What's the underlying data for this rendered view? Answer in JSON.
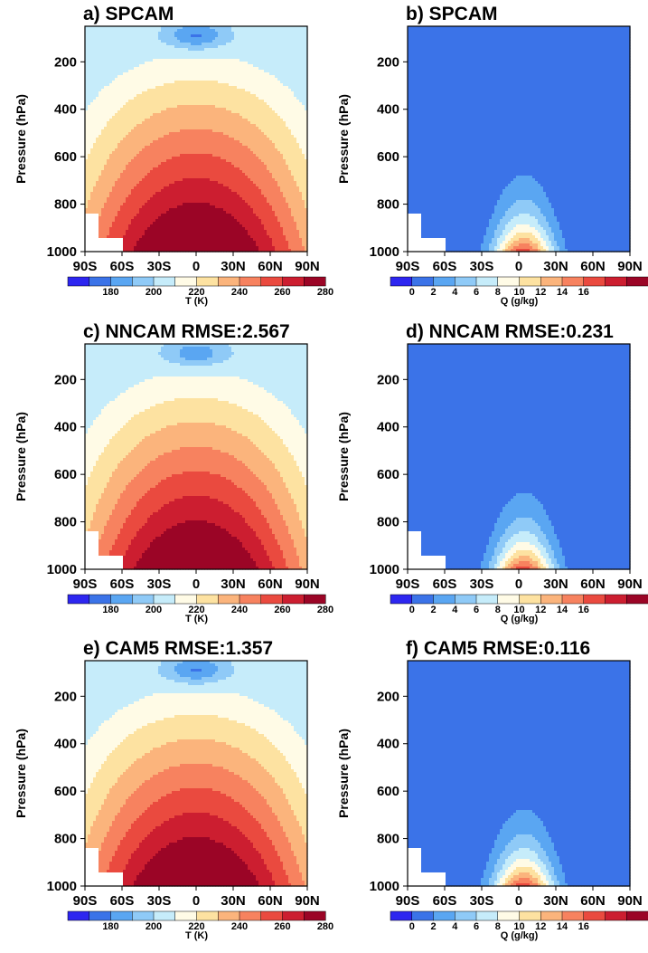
{
  "chart_data": [
    {
      "type": "contour",
      "title": "a) SPCAM",
      "variable": "T",
      "ylabel": "Pressure (hPa)",
      "x_ticks": [
        "90S",
        "60S",
        "30S",
        "0",
        "30N",
        "60N",
        "90N"
      ],
      "y_ticks": [
        "200",
        "400",
        "600",
        "800",
        "1000"
      ],
      "ylim": [
        1000,
        50
      ],
      "colorbar_label": "T (K)",
      "colorbar_ticks": [
        "180",
        "200",
        "220",
        "240",
        "260",
        "280"
      ],
      "colorbar_colors": [
        "#2d26f0",
        "#3b73e8",
        "#5aa6f2",
        "#8fcaf7",
        "#c6ecfa",
        "#fffbe6",
        "#fde2a1",
        "#fbb47c",
        "#f7825f",
        "#ea4a3f",
        "#cc1e30",
        "#9b0526"
      ],
      "contour_levels": [
        180,
        190,
        200,
        210,
        220,
        230,
        240,
        250,
        260,
        270,
        280,
        290
      ],
      "approx_maxima": {
        "surface_equator": 300,
        "tropopause_minimum": 190
      }
    },
    {
      "type": "contour",
      "title": "b) SPCAM",
      "variable": "Q",
      "ylabel": "Pressure (hPa)",
      "x_ticks": [
        "90S",
        "60S",
        "30S",
        "0",
        "30N",
        "60N",
        "90N"
      ],
      "y_ticks": [
        "200",
        "400",
        "600",
        "800",
        "1000"
      ],
      "ylim": [
        1000,
        50
      ],
      "colorbar_label": "Q (g/kg)",
      "colorbar_ticks": [
        "0",
        "2",
        "4",
        "6",
        "8",
        "10",
        "12",
        "14",
        "16"
      ],
      "colorbar_colors": [
        "#2d26f0",
        "#3b73e8",
        "#5aa6f2",
        "#8fcaf7",
        "#c6ecfa",
        "#fffbe6",
        "#fde2a1",
        "#fbb47c",
        "#f7825f",
        "#ea4a3f",
        "#cc1e30",
        "#9b0526"
      ],
      "contour_levels": [
        0,
        2,
        4,
        6,
        8,
        10,
        12,
        14,
        16
      ],
      "approx_maxima": {
        "surface_equator": 17
      }
    },
    {
      "type": "contour",
      "title": "c) NNCAM   RMSE:2.567",
      "variable": "T",
      "ylabel": "Pressure (hPa)",
      "x_ticks": [
        "90S",
        "60S",
        "30S",
        "0",
        "30N",
        "60N",
        "90N"
      ],
      "y_ticks": [
        "200",
        "400",
        "600",
        "800",
        "1000"
      ],
      "ylim": [
        1000,
        50
      ],
      "colorbar_label": "T (K)",
      "colorbar_ticks": [
        "180",
        "200",
        "220",
        "240",
        "260",
        "280"
      ],
      "rmse": 2.567
    },
    {
      "type": "contour",
      "title": "d) NNCAM   RMSE:0.231",
      "variable": "Q",
      "ylabel": "Pressure (hPa)",
      "x_ticks": [
        "90S",
        "60S",
        "30S",
        "0",
        "30N",
        "60N",
        "90N"
      ],
      "y_ticks": [
        "200",
        "400",
        "600",
        "800",
        "1000"
      ],
      "ylim": [
        1000,
        50
      ],
      "colorbar_label": "Q (g/kg)",
      "colorbar_ticks": [
        "0",
        "2",
        "4",
        "6",
        "8",
        "10",
        "12",
        "14",
        "16"
      ],
      "rmse": 0.231
    },
    {
      "type": "contour",
      "title": "e) CAM5   RMSE:1.357",
      "variable": "T",
      "ylabel": "Pressure (hPa)",
      "x_ticks": [
        "90S",
        "60S",
        "30S",
        "0",
        "30N",
        "60N",
        "90N"
      ],
      "y_ticks": [
        "200",
        "400",
        "600",
        "800",
        "1000"
      ],
      "ylim": [
        1000,
        50
      ],
      "colorbar_label": "T (K)",
      "colorbar_ticks": [
        "180",
        "200",
        "220",
        "240",
        "260",
        "280"
      ],
      "rmse": 1.357
    },
    {
      "type": "contour",
      "title": "f) CAM5   RMSE:0.116",
      "variable": "Q",
      "ylabel": "Pressure (hPa)",
      "x_ticks": [
        "90S",
        "60S",
        "30S",
        "0",
        "30N",
        "60N",
        "90N"
      ],
      "y_ticks": [
        "200",
        "400",
        "600",
        "800",
        "1000"
      ],
      "ylim": [
        1000,
        50
      ],
      "colorbar_label": "Q (g/kg)",
      "colorbar_ticks": [
        "0",
        "2",
        "4",
        "6",
        "8",
        "10",
        "12",
        "14",
        "16"
      ],
      "rmse": 0.116
    }
  ]
}
